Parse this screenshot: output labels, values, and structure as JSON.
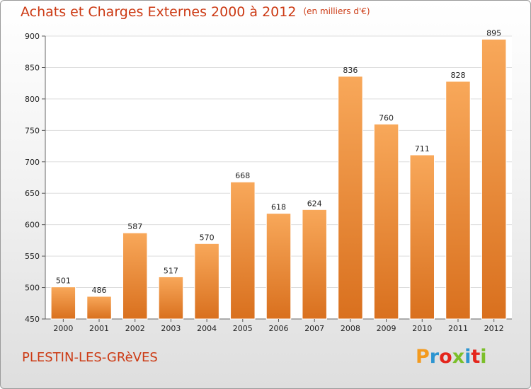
{
  "chart_data": {
    "type": "bar",
    "title": "Achats et Charges Externes 2000 à 2012",
    "unit": "(en milliers d'€)",
    "categories": [
      "2000",
      "2001",
      "2002",
      "2003",
      "2004",
      "2005",
      "2006",
      "2007",
      "2008",
      "2009",
      "2010",
      "2011",
      "2012"
    ],
    "values": [
      501,
      486,
      587,
      517,
      570,
      668,
      618,
      624,
      836,
      760,
      711,
      828,
      895
    ],
    "ylim": [
      450,
      900
    ],
    "yticks": [
      450,
      500,
      550,
      600,
      650,
      700,
      750,
      800,
      850,
      900
    ],
    "grid": true,
    "bar_color": "#f0923a",
    "xlabel": "",
    "ylabel": ""
  },
  "footer": {
    "town": "PLESTIN-LES-GRèVES",
    "logo": "Proxiti"
  },
  "colors": {
    "title": "#cc3a14",
    "bar_top": "#f8a85a",
    "bar_bottom": "#d9701e",
    "logo": [
      "#f39a1e",
      "#2d95d1",
      "#e4261c",
      "#7bbf2a",
      "#2d95d1",
      "#e4261c",
      "#7bbf2a"
    ]
  }
}
